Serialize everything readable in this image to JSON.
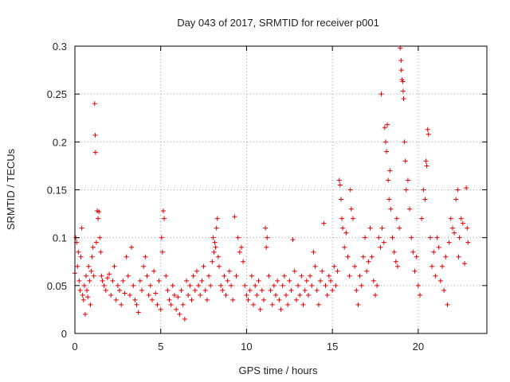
{
  "chart_data": {
    "type": "scatter",
    "title": "Day 043 of 2017, SRMTID for receiver p001",
    "xlabel": "GPS time / hours",
    "ylabel": "SRMTID / TECUs",
    "xlim": [
      0,
      24
    ],
    "ylim": [
      0,
      0.3
    ],
    "xticks": [
      0,
      5,
      10,
      15,
      20
    ],
    "xtick_labels": [
      "0",
      "5",
      "10",
      "15",
      "20"
    ],
    "yticks": [
      0,
      0.05,
      0.1,
      0.15,
      0.2,
      0.25,
      0.3
    ],
    "ytick_labels": [
      "0",
      "0.05",
      "0.1",
      "0.15",
      "0.2",
      "0.25",
      "0.3"
    ],
    "grid": true,
    "marker": "+",
    "color": "#e00000",
    "series": [
      {
        "name": "p001",
        "points": [
          [
            0.0,
            0.063
          ],
          [
            0.05,
            0.1
          ],
          [
            0.1,
            0.095
          ],
          [
            0.15,
            0.07
          ],
          [
            0.2,
            0.085
          ],
          [
            0.25,
            0.055
          ],
          [
            0.3,
            0.045
          ],
          [
            0.35,
            0.08
          ],
          [
            0.4,
            0.11
          ],
          [
            0.45,
            0.04
          ],
          [
            0.5,
            0.035
          ],
          [
            0.55,
            0.05
          ],
          [
            0.6,
            0.02
          ],
          [
            0.65,
            0.06
          ],
          [
            0.7,
            0.045
          ],
          [
            0.75,
            0.038
          ],
          [
            0.8,
            0.07
          ],
          [
            0.85,
            0.055
          ],
          [
            0.9,
            0.03
          ],
          [
            0.95,
            0.065
          ],
          [
            1.0,
            0.08
          ],
          [
            1.05,
            0.09
          ],
          [
            1.1,
            0.06
          ],
          [
            1.15,
            0.24
          ],
          [
            1.18,
            0.207
          ],
          [
            1.2,
            0.189
          ],
          [
            1.25,
            0.095
          ],
          [
            1.3,
            0.128
          ],
          [
            1.35,
            0.12
          ],
          [
            1.4,
            0.127
          ],
          [
            1.45,
            0.1
          ],
          [
            1.5,
            0.085
          ],
          [
            1.55,
            0.06
          ],
          [
            1.6,
            0.055
          ],
          [
            1.7,
            0.05
          ],
          [
            1.8,
            0.045
          ],
          [
            1.9,
            0.058
          ],
          [
            2.0,
            0.062
          ],
          [
            2.1,
            0.04
          ],
          [
            2.2,
            0.055
          ],
          [
            2.3,
            0.07
          ],
          [
            2.4,
            0.035
          ],
          [
            2.5,
            0.05
          ],
          [
            2.6,
            0.045
          ],
          [
            2.7,
            0.03
          ],
          [
            2.8,
            0.055
          ],
          [
            2.9,
            0.042
          ],
          [
            3.0,
            0.08
          ],
          [
            3.1,
            0.06
          ],
          [
            3.2,
            0.04
          ],
          [
            3.3,
            0.09
          ],
          [
            3.4,
            0.05
          ],
          [
            3.5,
            0.035
          ],
          [
            3.6,
            0.03
          ],
          [
            3.7,
            0.022
          ],
          [
            3.8,
            0.055
          ],
          [
            3.9,
            0.045
          ],
          [
            4.0,
            0.07
          ],
          [
            4.1,
            0.08
          ],
          [
            4.2,
            0.06
          ],
          [
            4.3,
            0.04
          ],
          [
            4.4,
            0.05
          ],
          [
            4.5,
            0.035
          ],
          [
            4.6,
            0.065
          ],
          [
            4.7,
            0.042
          ],
          [
            4.8,
            0.03
          ],
          [
            4.9,
            0.055
          ],
          [
            5.0,
            0.025
          ],
          [
            5.05,
            0.1
          ],
          [
            5.1,
            0.085
          ],
          [
            5.15,
            0.128
          ],
          [
            5.2,
            0.12
          ],
          [
            5.3,
            0.06
          ],
          [
            5.4,
            0.045
          ],
          [
            5.5,
            0.035
          ],
          [
            5.6,
            0.03
          ],
          [
            5.7,
            0.05
          ],
          [
            5.8,
            0.04
          ],
          [
            5.9,
            0.025
          ],
          [
            6.0,
            0.038
          ],
          [
            6.1,
            0.02
          ],
          [
            6.2,
            0.045
          ],
          [
            6.3,
            0.03
          ],
          [
            6.4,
            0.015
          ],
          [
            6.5,
            0.055
          ],
          [
            6.6,
            0.04
          ],
          [
            6.7,
            0.05
          ],
          [
            6.8,
            0.035
          ],
          [
            6.9,
            0.06
          ],
          [
            7.0,
            0.045
          ],
          [
            7.1,
            0.065
          ],
          [
            7.2,
            0.05
          ],
          [
            7.3,
            0.04
          ],
          [
            7.4,
            0.055
          ],
          [
            7.5,
            0.07
          ],
          [
            7.6,
            0.045
          ],
          [
            7.7,
            0.035
          ],
          [
            7.8,
            0.06
          ],
          [
            7.9,
            0.05
          ],
          [
            8.0,
            0.075
          ],
          [
            8.05,
            0.1
          ],
          [
            8.1,
            0.085
          ],
          [
            8.15,
            0.095
          ],
          [
            8.2,
            0.09
          ],
          [
            8.25,
            0.11
          ],
          [
            8.3,
            0.12
          ],
          [
            8.35,
            0.08
          ],
          [
            8.4,
            0.07
          ],
          [
            8.5,
            0.05
          ],
          [
            8.6,
            0.045
          ],
          [
            8.7,
            0.06
          ],
          [
            8.8,
            0.04
          ],
          [
            8.9,
            0.055
          ],
          [
            9.0,
            0.065
          ],
          [
            9.1,
            0.05
          ],
          [
            9.2,
            0.035
          ],
          [
            9.3,
            0.122
          ],
          [
            9.4,
            0.06
          ],
          [
            9.5,
            0.1
          ],
          [
            9.6,
            0.085
          ],
          [
            9.7,
            0.09
          ],
          [
            9.8,
            0.075
          ],
          [
            9.9,
            0.05
          ],
          [
            10.0,
            0.04
          ],
          [
            10.1,
            0.035
          ],
          [
            10.2,
            0.045
          ],
          [
            10.3,
            0.06
          ],
          [
            10.4,
            0.03
          ],
          [
            10.5,
            0.05
          ],
          [
            10.6,
            0.04
          ],
          [
            10.7,
            0.055
          ],
          [
            10.8,
            0.025
          ],
          [
            10.9,
            0.045
          ],
          [
            11.0,
            0.035
          ],
          [
            11.1,
            0.11
          ],
          [
            11.15,
            0.09
          ],
          [
            11.2,
            0.1
          ],
          [
            11.3,
            0.06
          ],
          [
            11.4,
            0.045
          ],
          [
            11.5,
            0.03
          ],
          [
            11.6,
            0.05
          ],
          [
            11.7,
            0.04
          ],
          [
            11.8,
            0.055
          ],
          [
            11.9,
            0.035
          ],
          [
            12.0,
            0.025
          ],
          [
            12.1,
            0.05
          ],
          [
            12.2,
            0.06
          ],
          [
            12.3,
            0.04
          ],
          [
            12.4,
            0.03
          ],
          [
            12.5,
            0.055
          ],
          [
            12.6,
            0.045
          ],
          [
            12.7,
            0.098
          ],
          [
            12.8,
            0.065
          ],
          [
            12.9,
            0.035
          ],
          [
            13.0,
            0.05
          ],
          [
            13.1,
            0.04
          ],
          [
            13.2,
            0.06
          ],
          [
            13.3,
            0.03
          ],
          [
            13.4,
            0.045
          ],
          [
            13.5,
            0.055
          ],
          [
            13.6,
            0.04
          ],
          [
            13.7,
            0.06
          ],
          [
            13.8,
            0.05
          ],
          [
            13.9,
            0.085
          ],
          [
            14.0,
            0.07
          ],
          [
            14.1,
            0.045
          ],
          [
            14.2,
            0.03
          ],
          [
            14.3,
            0.055
          ],
          [
            14.4,
            0.065
          ],
          [
            14.5,
            0.115
          ],
          [
            14.6,
            0.05
          ],
          [
            14.7,
            0.04
          ],
          [
            14.8,
            0.06
          ],
          [
            14.9,
            0.055
          ],
          [
            15.0,
            0.045
          ],
          [
            15.1,
            0.07
          ],
          [
            15.2,
            0.05
          ],
          [
            15.3,
            0.065
          ],
          [
            15.4,
            0.16
          ],
          [
            15.45,
            0.155
          ],
          [
            15.5,
            0.14
          ],
          [
            15.55,
            0.12
          ],
          [
            15.6,
            0.11
          ],
          [
            15.7,
            0.09
          ],
          [
            15.8,
            0.105
          ],
          [
            15.9,
            0.08
          ],
          [
            16.0,
            0.06
          ],
          [
            16.05,
            0.15
          ],
          [
            16.1,
            0.13
          ],
          [
            16.2,
            0.12
          ],
          [
            16.3,
            0.07
          ],
          [
            16.4,
            0.045
          ],
          [
            16.5,
            0.03
          ],
          [
            16.6,
            0.06
          ],
          [
            16.7,
            0.05
          ],
          [
            16.8,
            0.08
          ],
          [
            16.9,
            0.1
          ],
          [
            17.0,
            0.065
          ],
          [
            17.1,
            0.075
          ],
          [
            17.2,
            0.11
          ],
          [
            17.3,
            0.08
          ],
          [
            17.4,
            0.055
          ],
          [
            17.5,
            0.04
          ],
          [
            17.6,
            0.05
          ],
          [
            17.7,
            0.1
          ],
          [
            17.8,
            0.09
          ],
          [
            17.85,
            0.25
          ],
          [
            17.9,
            0.11
          ],
          [
            18.0,
            0.095
          ],
          [
            18.05,
            0.215
          ],
          [
            18.1,
            0.2
          ],
          [
            18.15,
            0.19
          ],
          [
            18.2,
            0.218
          ],
          [
            18.25,
            0.16
          ],
          [
            18.3,
            0.14
          ],
          [
            18.35,
            0.17
          ],
          [
            18.4,
            0.13
          ],
          [
            18.5,
            0.1
          ],
          [
            18.6,
            0.085
          ],
          [
            18.7,
            0.075
          ],
          [
            18.75,
            0.12
          ],
          [
            18.8,
            0.07
          ],
          [
            18.9,
            0.11
          ],
          [
            18.95,
            0.298
          ],
          [
            19.0,
            0.285
          ],
          [
            19.02,
            0.275
          ],
          [
            19.05,
            0.265
          ],
          [
            19.1,
            0.263
          ],
          [
            19.12,
            0.253
          ],
          [
            19.15,
            0.245
          ],
          [
            19.2,
            0.2
          ],
          [
            19.25,
            0.18
          ],
          [
            19.3,
            0.15
          ],
          [
            19.4,
            0.16
          ],
          [
            19.5,
            0.13
          ],
          [
            19.6,
            0.1
          ],
          [
            19.7,
            0.085
          ],
          [
            19.8,
            0.065
          ],
          [
            19.9,
            0.08
          ],
          [
            20.0,
            0.05
          ],
          [
            20.1,
            0.04
          ],
          [
            20.2,
            0.12
          ],
          [
            20.3,
            0.15
          ],
          [
            20.4,
            0.14
          ],
          [
            20.45,
            0.18
          ],
          [
            20.5,
            0.175
          ],
          [
            20.55,
            0.213
          ],
          [
            20.6,
            0.208
          ],
          [
            20.7,
            0.1
          ],
          [
            20.8,
            0.07
          ],
          [
            20.9,
            0.085
          ],
          [
            21.0,
            0.06
          ],
          [
            21.1,
            0.1
          ],
          [
            21.2,
            0.09
          ],
          [
            21.3,
            0.055
          ],
          [
            21.4,
            0.07
          ],
          [
            21.5,
            0.045
          ],
          [
            21.6,
            0.08
          ],
          [
            21.7,
            0.03
          ],
          [
            21.8,
            0.095
          ],
          [
            21.9,
            0.12
          ],
          [
            22.0,
            0.11
          ],
          [
            22.1,
            0.105
          ],
          [
            22.2,
            0.14
          ],
          [
            22.3,
            0.15
          ],
          [
            22.35,
            0.08
          ],
          [
            22.4,
            0.1
          ],
          [
            22.5,
            0.12
          ],
          [
            22.6,
            0.115
          ],
          [
            22.7,
            0.073
          ],
          [
            22.8,
            0.152
          ],
          [
            22.85,
            0.11
          ],
          [
            22.9,
            0.095
          ]
        ]
      }
    ]
  }
}
